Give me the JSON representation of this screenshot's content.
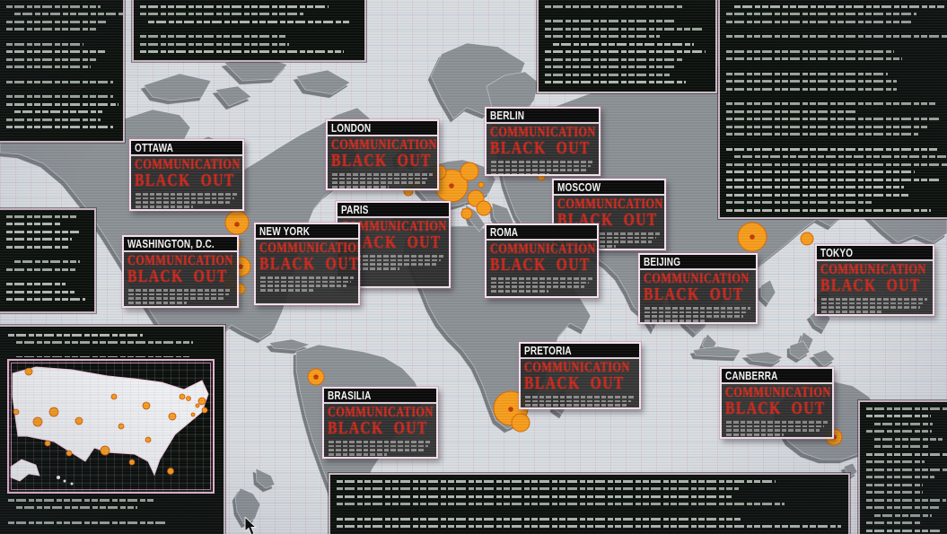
{
  "alerts": {
    "message_line1": "COMMUNICATION",
    "message_line2": "BLACK OUT",
    "cities": [
      "OTTAWA",
      "WASHINGTON, D.C.",
      "NEW YORK",
      "LONDON",
      "PARIS",
      "BERLIN",
      "MOSCOW",
      "ROMA",
      "BEIJING",
      "TOKYO",
      "PRETORIA",
      "BRASILIA",
      "CANBERRA"
    ]
  },
  "colors": {
    "alert_red": "#d2291e",
    "epicenter_orange": "#f59c1c",
    "panel_border_pink": "#eed6e4",
    "map_land_gray": "#8b9095",
    "map_background": "#d8dce0"
  },
  "icons": {
    "cursor": "mouse-pointer-icon"
  }
}
